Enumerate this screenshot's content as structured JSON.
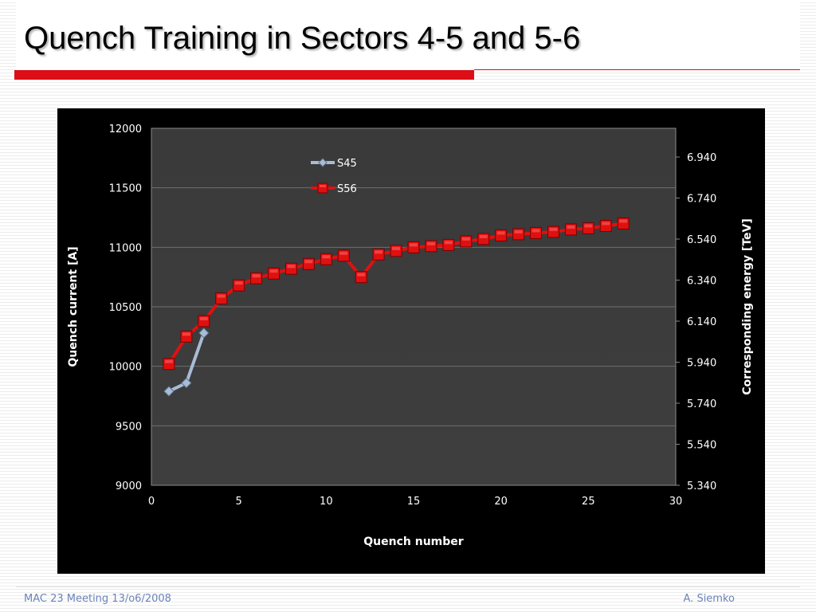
{
  "slide": {
    "title": "Quench Training in Sectors 4-5 and 5-6",
    "footer_left": "MAC 23 Meeting 13/o6/2008",
    "footer_right": "A. Siemko",
    "accent_color": "#dc0e16"
  },
  "chart_data": {
    "type": "line",
    "title": "",
    "xlabel": "Quench number",
    "ylabel": "Quench current [A]",
    "y2label": "Corresponding energy [TeV]",
    "xlim": [
      0,
      30
    ],
    "ylim": [
      9000,
      12000
    ],
    "y2lim": [
      5.34,
      7.08
    ],
    "x_ticks": [
      0,
      5,
      10,
      15,
      20,
      25,
      30
    ],
    "y_ticks": [
      9000,
      9500,
      10000,
      10500,
      11000,
      11500,
      12000
    ],
    "y2_ticks": [
      "5.340",
      "5.540",
      "5.740",
      "5.940",
      "6.140",
      "6.340",
      "6.540",
      "6.740",
      "6.940"
    ],
    "grid": true,
    "legend_position": "top-left",
    "series": [
      {
        "name": "S45",
        "color": "#a8bcd6",
        "marker": "diamond",
        "x": [
          1,
          2,
          3
        ],
        "y": [
          9790,
          9860,
          10280
        ]
      },
      {
        "name": "S56",
        "color": "#e01010",
        "marker": "square",
        "x": [
          1,
          2,
          3,
          4,
          5,
          6,
          7,
          8,
          9,
          10,
          11,
          12,
          13,
          14,
          15,
          16,
          17,
          18,
          19,
          20,
          21,
          22,
          23,
          24,
          25,
          26,
          27
        ],
        "y": [
          10020,
          10250,
          10380,
          10570,
          10680,
          10740,
          10780,
          10820,
          10860,
          10900,
          10930,
          10750,
          10940,
          10970,
          11000,
          11010,
          11020,
          11050,
          11070,
          11100,
          11110,
          11120,
          11130,
          11150,
          11160,
          11180,
          11200
        ]
      }
    ]
  }
}
